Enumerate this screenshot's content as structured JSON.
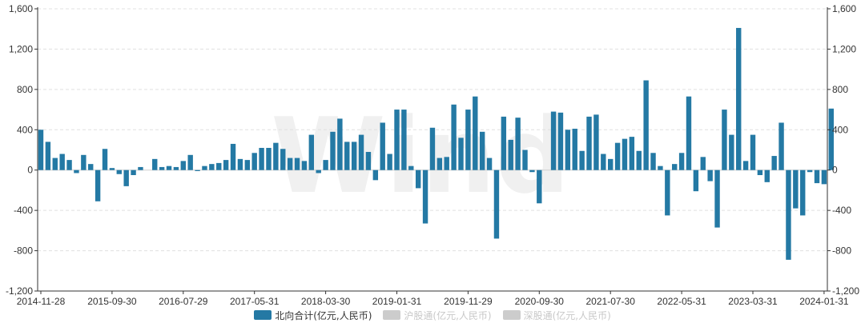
{
  "chart_data": {
    "type": "bar",
    "watermark": "Wind",
    "y_axis": {
      "min": -1200,
      "max": 1600,
      "ticks": [
        -1200,
        -800,
        -400,
        0,
        400,
        800,
        1200,
        1600
      ],
      "tick_labels": [
        "-1,200",
        "-800",
        "-400",
        "0",
        "400",
        "800",
        "1,200",
        "1,600"
      ],
      "grid": true,
      "mirrored_right": true
    },
    "x_axis": {
      "tick_labels": [
        "2014-11-28",
        "2015-09-30",
        "2016-07-29",
        "2017-05-31",
        "2018-03-30",
        "2019-01-31",
        "2019-11-29",
        "2020-09-30",
        "2021-07-30",
        "2022-05-31",
        "2023-03-31",
        "2024-01-31"
      ],
      "tick_indices": [
        0,
        10,
        20,
        30,
        40,
        50,
        60,
        70,
        80,
        90,
        100,
        110
      ]
    },
    "legend": {
      "placement": "bottom",
      "items": [
        {
          "name": "北向合计(亿元,人民币)",
          "color": "#2479a4",
          "active": true
        },
        {
          "name": "沪股通(亿元,人民币)",
          "color": "#cccccc",
          "active": false
        },
        {
          "name": "深股通(亿元,人民币)",
          "color": "#cccccc",
          "active": false
        }
      ]
    },
    "colors": {
      "bar": "#2479a4",
      "axis": "#333333",
      "grid": "#e0e0e0",
      "text": "#333333",
      "watermark": "#f0f0f0"
    },
    "series": [
      {
        "name": "北向合计(亿元,人民币)",
        "values": [
          400,
          280,
          120,
          160,
          100,
          -30,
          150,
          60,
          -310,
          210,
          20,
          -40,
          -160,
          -50,
          30,
          0,
          110,
          30,
          40,
          30,
          90,
          150,
          -10,
          40,
          60,
          70,
          100,
          260,
          110,
          100,
          170,
          220,
          220,
          270,
          210,
          120,
          120,
          90,
          350,
          -30,
          100,
          380,
          510,
          280,
          280,
          350,
          180,
          -100,
          470,
          160,
          600,
          600,
          40,
          -180,
          -530,
          420,
          120,
          130,
          650,
          320,
          600,
          730,
          380,
          120,
          -680,
          530,
          300,
          520,
          200,
          -20,
          -330,
          0,
          580,
          570,
          400,
          410,
          190,
          530,
          550,
          160,
          110,
          270,
          310,
          330,
          190,
          890,
          170,
          40,
          -450,
          60,
          170,
          730,
          -210,
          130,
          -110,
          -570,
          600,
          350,
          1410,
          90,
          350,
          -50,
          -120,
          140,
          470,
          -890,
          -380,
          -450,
          -20,
          -130,
          -140,
          610
        ]
      }
    ]
  }
}
